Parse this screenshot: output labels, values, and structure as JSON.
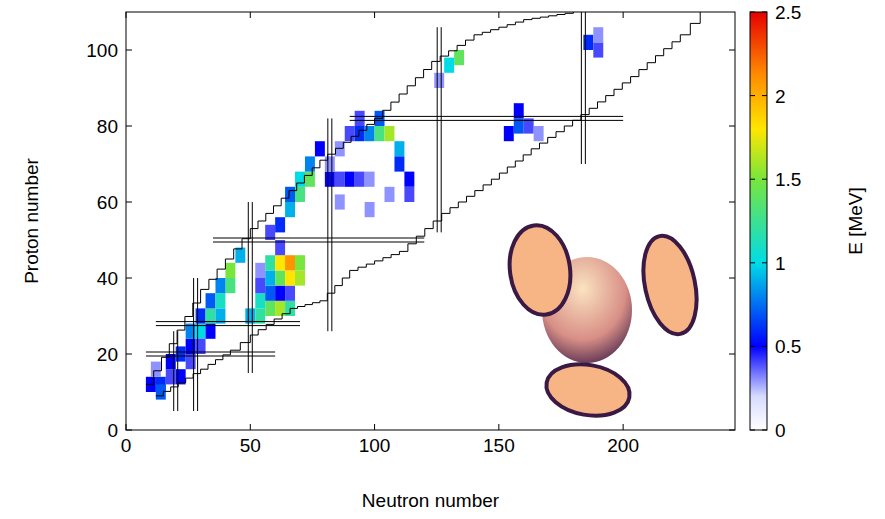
{
  "chart_data": {
    "type": "heatmap",
    "x_label": "Neutron number",
    "y_label": "Proton number",
    "xlim": [
      0,
      245
    ],
    "ylim": [
      0,
      110
    ],
    "xticks": [
      0,
      50,
      100,
      150,
      200
    ],
    "yticks": [
      0,
      20,
      40,
      60,
      80,
      100
    ],
    "colorbar": {
      "label": "E [MeV]",
      "range": [
        0,
        2.5
      ],
      "ticks": [
        0,
        0.5,
        1,
        1.5,
        2,
        2.5
      ]
    },
    "cells": [
      [
        10,
        12,
        0.5
      ],
      [
        14,
        12,
        0.6
      ],
      [
        18,
        14,
        0.4
      ],
      [
        22,
        14,
        0.5
      ],
      [
        12,
        16,
        0.3
      ],
      [
        18,
        18,
        0.5
      ],
      [
        22,
        20,
        0.6
      ],
      [
        26,
        18,
        0.4
      ],
      [
        14,
        10,
        0.7
      ],
      [
        26,
        22,
        0.5
      ],
      [
        26,
        26,
        0.8
      ],
      [
        30,
        26,
        1.0
      ],
      [
        30,
        30,
        0.6
      ],
      [
        34,
        30,
        1.2
      ],
      [
        38,
        30,
        0.9
      ],
      [
        34,
        34,
        0.7
      ],
      [
        38,
        34,
        1.1
      ],
      [
        42,
        38,
        1.3
      ],
      [
        38,
        38,
        0.8
      ],
      [
        42,
        42,
        1.5
      ],
      [
        46,
        46,
        0.9
      ],
      [
        30,
        22,
        0.4
      ],
      [
        34,
        26,
        0.5
      ],
      [
        50,
        30,
        0.9
      ],
      [
        54,
        30,
        1.2
      ],
      [
        58,
        32,
        1.4
      ],
      [
        62,
        32,
        1.6
      ],
      [
        66,
        32,
        1.2
      ],
      [
        54,
        34,
        1.1
      ],
      [
        58,
        36,
        0.7
      ],
      [
        62,
        36,
        0.5
      ],
      [
        66,
        36,
        0.4
      ],
      [
        54,
        38,
        0.4
      ],
      [
        58,
        40,
        0.9
      ],
      [
        62,
        40,
        1.4
      ],
      [
        66,
        40,
        1.8
      ],
      [
        70,
        40,
        1.6
      ],
      [
        58,
        44,
        1.2
      ],
      [
        62,
        44,
        1.8
      ],
      [
        66,
        44,
        2.1
      ],
      [
        70,
        44,
        1.5
      ],
      [
        62,
        48,
        0.4
      ],
      [
        54,
        42,
        0.3
      ],
      [
        58,
        52,
        0.4
      ],
      [
        62,
        54,
        0.6
      ],
      [
        66,
        58,
        0.9
      ],
      [
        70,
        62,
        1.3
      ],
      [
        74,
        66,
        1.4
      ],
      [
        70,
        66,
        1.0
      ],
      [
        74,
        70,
        0.8
      ],
      [
        78,
        74,
        0.5
      ],
      [
        66,
        62,
        0.7
      ],
      [
        82,
        66,
        0.5
      ],
      [
        86,
        66,
        0.4
      ],
      [
        90,
        66,
        0.5
      ],
      [
        94,
        66,
        0.4
      ],
      [
        98,
        66,
        0.3
      ],
      [
        82,
        70,
        0.3
      ],
      [
        86,
        74,
        0.3
      ],
      [
        90,
        78,
        0.4
      ],
      [
        94,
        78,
        0.6
      ],
      [
        98,
        78,
        0.8
      ],
      [
        102,
        78,
        1.3
      ],
      [
        106,
        78,
        1.6
      ],
      [
        110,
        74,
        0.9
      ],
      [
        110,
        70,
        0.6
      ],
      [
        114,
        66,
        0.5
      ],
      [
        106,
        62,
        0.3
      ],
      [
        98,
        58,
        0.3
      ],
      [
        102,
        82,
        0.7
      ],
      [
        94,
        82,
        0.4
      ],
      [
        114,
        62,
        0.4
      ],
      [
        86,
        60,
        0.3
      ],
      [
        130,
        96,
        1.0
      ],
      [
        134,
        98,
        1.4
      ],
      [
        126,
        92,
        0.3
      ],
      [
        154,
        78,
        0.5
      ],
      [
        158,
        80,
        0.7
      ],
      [
        162,
        80,
        0.4
      ],
      [
        158,
        84,
        0.5
      ],
      [
        166,
        78,
        0.3
      ],
      [
        186,
        102,
        0.6
      ],
      [
        190,
        100,
        0.4
      ],
      [
        190,
        104,
        0.3
      ]
    ],
    "drip_lines": [
      {
        "N": [
          8,
          30,
          50,
          78,
          100,
          123,
          140,
          160,
          180
        ],
        "Z": [
          12,
          37,
          53,
          71,
          82,
          97,
          104,
          108,
          110
        ]
      },
      {
        "N": [
          12,
          30,
          42,
          50,
          66,
          78,
          90,
          110,
          127,
          147,
          163,
          183,
          203,
          223,
          231
        ],
        "Z": [
          9,
          16,
          21,
          25,
          32,
          34,
          42,
          47,
          57,
          66,
          74,
          83,
          93,
          104,
          110
        ]
      }
    ],
    "magic_lines": [
      {
        "axis": "N",
        "value": 20,
        "from": 5,
        "to": 26
      },
      {
        "axis": "N",
        "value": 28,
        "from": 5,
        "to": 40
      },
      {
        "axis": "N",
        "value": 50,
        "from": 15,
        "to": 60
      },
      {
        "axis": "N",
        "value": 82,
        "from": 26,
        "to": 82
      },
      {
        "axis": "N",
        "value": 126,
        "from": 52,
        "to": 106
      },
      {
        "axis": "N",
        "value": 184,
        "from": 70,
        "to": 110
      },
      {
        "axis": "Z",
        "value": 20,
        "from": 8,
        "to": 60
      },
      {
        "axis": "Z",
        "value": 28,
        "from": 12,
        "to": 70
      },
      {
        "axis": "Z",
        "value": 50,
        "from": 35,
        "to": 120
      },
      {
        "axis": "Z",
        "value": 82,
        "from": 90,
        "to": 200
      }
    ]
  }
}
